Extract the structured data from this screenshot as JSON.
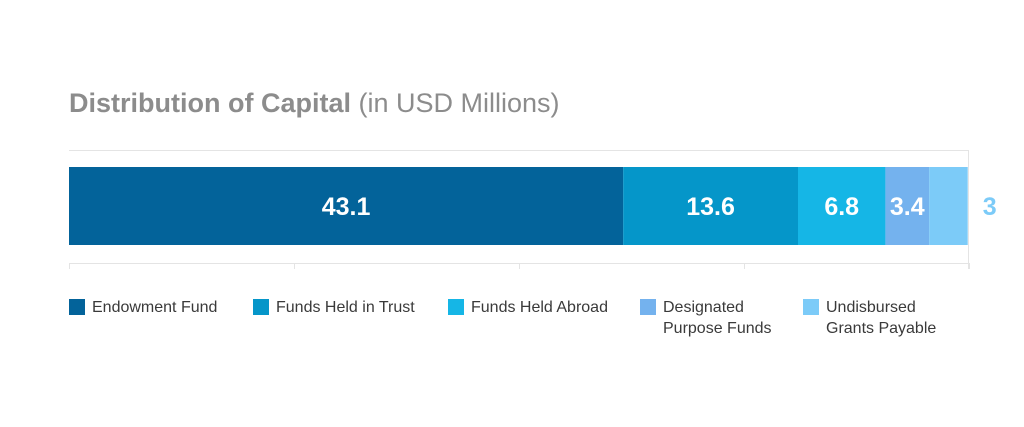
{
  "title": {
    "main": "Distribution of Capital",
    "sub": "(in USD Millions)"
  },
  "chart_data": {
    "type": "bar",
    "orientation": "horizontal-stacked",
    "title": "Distribution of Capital (in USD Millions)",
    "xlim": [
      0,
      70
    ],
    "grid": false,
    "legend_placement": "bottom",
    "series": [
      {
        "name": "Endowment Fund",
        "value": 43.1,
        "label": "43.1",
        "color": "#03639a",
        "legend": "Endowment Fund"
      },
      {
        "name": "Funds Held in Trust",
        "value": 13.6,
        "label": "13.6",
        "color": "#0596c9",
        "legend": "Funds Held in Trust"
      },
      {
        "name": "Funds Held Abroad",
        "value": 6.8,
        "label": "6.8",
        "color": "#15b6e6",
        "legend": "Funds Held Abroad"
      },
      {
        "name": "Designated Purpose Funds",
        "value": 3.4,
        "label": "3.4",
        "color": "#74b2ee",
        "legend": "Designated\nPurpose Funds"
      },
      {
        "name": "Undisbursed Grants Payable",
        "value": 3,
        "label": "3",
        "color": "#7ccbf8",
        "legend": "Undisbursed\nGrants Payable"
      }
    ]
  }
}
